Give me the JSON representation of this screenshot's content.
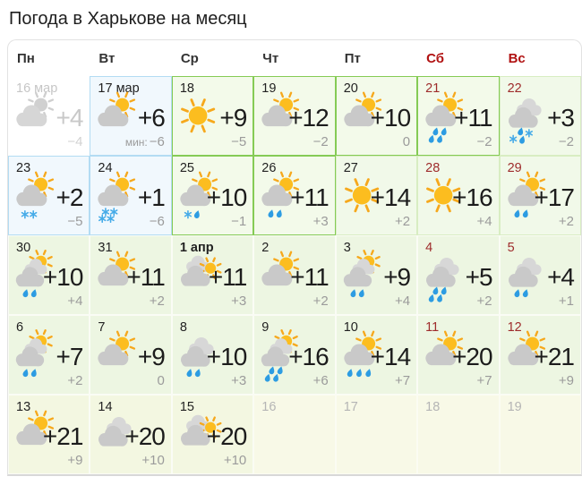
{
  "title": "Погода в Харькове на месяц",
  "weekdays": [
    {
      "label": "Пн",
      "weekend": false
    },
    {
      "label": "Вт",
      "weekend": false
    },
    {
      "label": "Ср",
      "weekend": false
    },
    {
      "label": "Чт",
      "weekend": false
    },
    {
      "label": "Пт",
      "weekend": false
    },
    {
      "label": "Сб",
      "weekend": true
    },
    {
      "label": "Вс",
      "weekend": true
    }
  ],
  "min_label": "мин:",
  "colors": {
    "weekend_header_red": "#b11212",
    "weekend_date_red": "#9e2b2b",
    "green_border": "#85cb55",
    "blue_border": "#b3dcf3",
    "sun": "#fbbd1f",
    "rain_drop": "#2d9ce2",
    "snow_flake": "#46abe8"
  },
  "cells": [
    {
      "date": "16 мар",
      "style": "past",
      "icon": "sun-cloud-gray",
      "tmax": "+4",
      "tmin": "−4"
    },
    {
      "date": "17 мар",
      "style": "blue",
      "icon": "sun-cloud",
      "tmax": "+6",
      "tmin": "−6",
      "min_label": true
    },
    {
      "date": "18",
      "style": "gbright",
      "icon": "sun",
      "tmax": "+9",
      "tmin": "−5"
    },
    {
      "date": "19",
      "style": "gbright",
      "icon": "sun-cloud",
      "tmax": "+12",
      "tmin": "−2"
    },
    {
      "date": "20",
      "style": "gbright",
      "icon": "sun-cloud",
      "tmax": "+10",
      "tmin": "0"
    },
    {
      "date": "21",
      "style": "gbright",
      "red": true,
      "icon": "sun-cloud-rain-4",
      "tmax": "+11",
      "tmin": "−2"
    },
    {
      "date": "22",
      "style": "glight",
      "red": true,
      "icon": "clouds-sleet",
      "tmax": "+3",
      "tmin": "−2"
    },
    {
      "date": "23",
      "style": "blue",
      "icon": "sun-cloud-snow-2",
      "tmax": "+2",
      "tmin": "−5"
    },
    {
      "date": "24",
      "style": "blue",
      "icon": "sun-cloud-snow-4",
      "tmax": "+1",
      "tmin": "−6"
    },
    {
      "date": "25",
      "style": "gbright",
      "icon": "sun-cloud-sleet",
      "tmax": "+10",
      "tmin": "−1"
    },
    {
      "date": "26",
      "style": "gbright",
      "icon": "sun-cloud-rain-2",
      "tmax": "+11",
      "tmin": "+3"
    },
    {
      "date": "27",
      "style": "glight",
      "icon": "sun",
      "tmax": "+14",
      "tmin": "+2"
    },
    {
      "date": "28",
      "style": "glight",
      "red": true,
      "icon": "sun",
      "tmax": "+16",
      "tmin": "+4"
    },
    {
      "date": "29",
      "style": "glight",
      "red": true,
      "icon": "sun-cloud-rain-2",
      "tmax": "+17",
      "tmin": "+2"
    },
    {
      "date": "30",
      "style": "plain",
      "icon": "sun-clouds-rain-2",
      "tmax": "+10",
      "tmin": "+4"
    },
    {
      "date": "31",
      "style": "plain",
      "icon": "sun-cloud",
      "tmax": "+11",
      "tmin": "+2"
    },
    {
      "date": "1 апр",
      "style": "plain",
      "bold": true,
      "icon": "clouds-sun",
      "tmax": "+11",
      "tmin": "+3"
    },
    {
      "date": "2",
      "style": "plain",
      "icon": "sun-cloud",
      "tmax": "+11",
      "tmin": "+2"
    },
    {
      "date": "3",
      "style": "plain",
      "icon": "sun-clouds-rain-2",
      "tmax": "+9",
      "tmin": "+4"
    },
    {
      "date": "4",
      "style": "plain",
      "red": true,
      "icon": "clouds-rain-4",
      "tmax": "+5",
      "tmin": "+2"
    },
    {
      "date": "5",
      "style": "plain",
      "red": true,
      "icon": "clouds-rain-2",
      "tmax": "+4",
      "tmin": "+1"
    },
    {
      "date": "6",
      "style": "plain",
      "icon": "sun-clouds-rain-2",
      "tmax": "+7",
      "tmin": "+2"
    },
    {
      "date": "7",
      "style": "plain",
      "icon": "sun-cloud",
      "tmax": "+9",
      "tmin": "0"
    },
    {
      "date": "8",
      "style": "plain",
      "icon": "clouds-rain-2",
      "tmax": "+10",
      "tmin": "+3"
    },
    {
      "date": "9",
      "style": "plain",
      "icon": "sun-clouds-rain-4",
      "tmax": "+16",
      "tmin": "+6"
    },
    {
      "date": "10",
      "style": "plain",
      "icon": "sun-cloud-rain-3",
      "tmax": "+14",
      "tmin": "+7"
    },
    {
      "date": "11",
      "style": "plain",
      "red": true,
      "icon": "sun-cloud",
      "tmax": "+20",
      "tmin": "+7"
    },
    {
      "date": "12",
      "style": "plain",
      "red": true,
      "icon": "sun-cloud",
      "tmax": "+21",
      "tmin": "+9"
    },
    {
      "date": "13",
      "style": "yellow",
      "icon": "sun-cloud",
      "tmax": "+21",
      "tmin": "+9"
    },
    {
      "date": "14",
      "style": "yellow",
      "icon": "clouds",
      "tmax": "+20",
      "tmin": "+10"
    },
    {
      "date": "15",
      "style": "yellow",
      "icon": "clouds-sun",
      "tmax": "+20",
      "tmin": "+10"
    },
    {
      "date": "16",
      "style": "empty"
    },
    {
      "date": "17",
      "style": "empty"
    },
    {
      "date": "18",
      "style": "empty"
    },
    {
      "date": "19",
      "style": "empty"
    }
  ]
}
